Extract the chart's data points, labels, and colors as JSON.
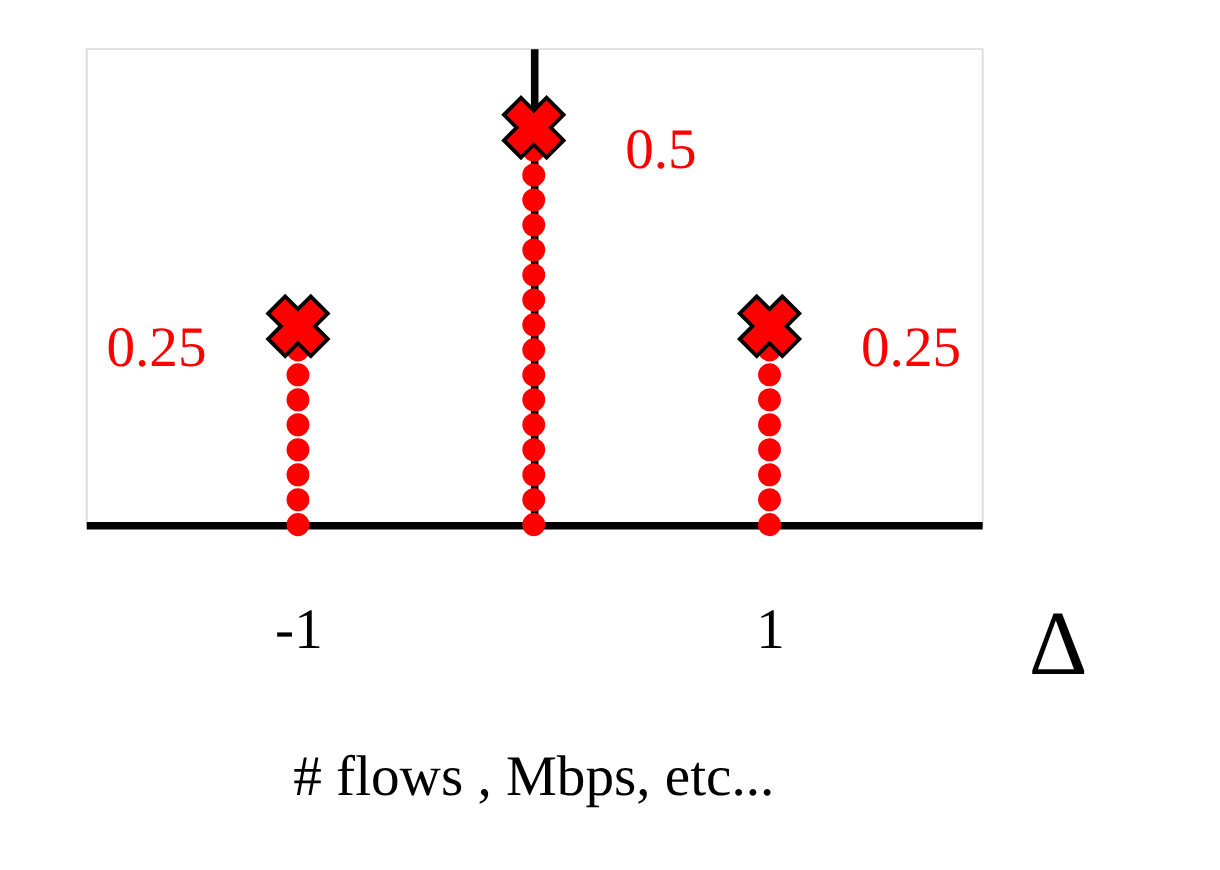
{
  "chart_data": {
    "type": "lollipop",
    "x": [
      -1,
      0,
      1
    ],
    "values": [
      0.25,
      0.5,
      0.25
    ],
    "color": "#ff0000",
    "data_labels": true,
    "xlabel": "Δ",
    "annotations": [
      "# flows , Mbps, etc..."
    ],
    "xlim": [
      -1.9,
      1.9
    ],
    "xticks": [
      -1,
      1
    ],
    "ylim": [
      0,
      0.6
    ],
    "tick_labels": "x",
    "marker": "cross",
    "line_style": "dotted",
    "grid": false
  }
}
